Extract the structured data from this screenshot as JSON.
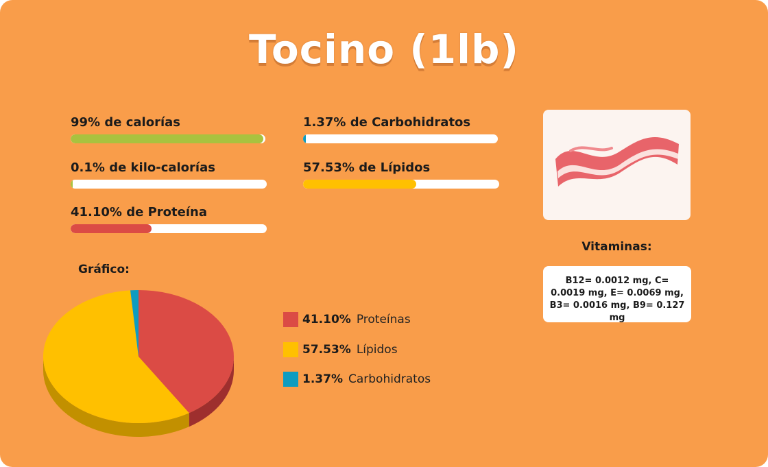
{
  "title": "Tocino (1lb)",
  "stats": [
    {
      "label": "99% de calorías",
      "value": 99,
      "color": "#A9C23F"
    },
    {
      "label": "0.1% de kilo-calorías",
      "value": 0.1,
      "color": "#A9C23F"
    },
    {
      "label": "41.10% de Proteína",
      "value": 41.1,
      "color": "#DB4B45"
    },
    {
      "label": "1.37% de Carbohidratos",
      "value": 1.37,
      "color": "#0E9CC0"
    },
    {
      "label": "57.53% de Lípidos",
      "value": 57.53,
      "color": "#FFC000"
    }
  ],
  "image": {
    "icon": "bacon-icon"
  },
  "vitamins": {
    "title": "Vitaminas:",
    "text": "B12= 0.0012 mg, C= 0.0019 mg, E= 0.0069 mg, B3= 0.0016 mg, B9= 0.127 mg"
  },
  "chart_label": "Gráfico:",
  "chart_data": {
    "type": "pie",
    "title": "",
    "slices": [
      {
        "name": "Proteínas",
        "label": "41.10%",
        "value": 41.1,
        "color": "#DB4B45",
        "side_color": "#9E2F2E"
      },
      {
        "name": "Lípidos",
        "label": "57.53%",
        "value": 57.53,
        "color": "#FFC000",
        "side_color": "#C29000"
      },
      {
        "name": "Carbohidratos",
        "label": "1.37%",
        "value": 1.37,
        "color": "#0E9CC0",
        "side_color": "#0A6E88"
      }
    ],
    "legend_position": "right"
  }
}
